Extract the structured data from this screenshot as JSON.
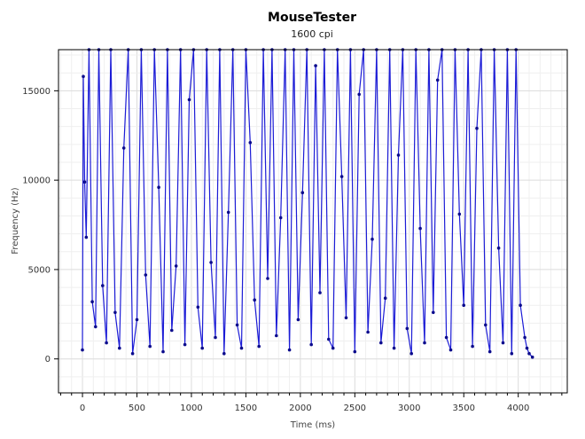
{
  "chart_data": {
    "type": "line",
    "title": "MouseTester",
    "subtitle": "1600 cpi",
    "xlabel": "Time (ms)",
    "ylabel": "Frequency (Hz)",
    "xlim": [
      -220,
      4450
    ],
    "ylim": [
      -1900,
      17300
    ],
    "x_ticks": [
      0,
      500,
      1000,
      1500,
      2000,
      2500,
      3000,
      3500,
      4000
    ],
    "y_ticks": [
      0,
      5000,
      10000,
      15000
    ],
    "x_minor_step": 100,
    "grid": true,
    "series": [
      {
        "color": "#1c1cd6",
        "marker_color": "#0b0b8c",
        "marker": "circle",
        "description_of_values": "sampled polling-rate readings, spiking between roughly 200 Hz and the top of the plot",
        "x": [
          0,
          8,
          20,
          35,
          60,
          90,
          120,
          150,
          185,
          220,
          260,
          300,
          340,
          380,
          420,
          460,
          500,
          540,
          580,
          620,
          660,
          700,
          740,
          780,
          820,
          860,
          900,
          940,
          980,
          1020,
          1060,
          1100,
          1140,
          1180,
          1220,
          1260,
          1300,
          1340,
          1380,
          1420,
          1460,
          1500,
          1540,
          1580,
          1620,
          1660,
          1700,
          1740,
          1780,
          1820,
          1860,
          1900,
          1940,
          1980,
          2020,
          2060,
          2100,
          2140,
          2180,
          2220,
          2260,
          2300,
          2340,
          2380,
          2420,
          2460,
          2500,
          2540,
          2580,
          2620,
          2660,
          2700,
          2740,
          2780,
          2820,
          2860,
          2900,
          2940,
          2980,
          3020,
          3060,
          3100,
          3140,
          3180,
          3220,
          3260,
          3300,
          3340,
          3380,
          3420,
          3460,
          3500,
          3540,
          3580,
          3620,
          3660,
          3700,
          3740,
          3780,
          3820,
          3860,
          3900,
          3940,
          3980,
          4020,
          4060,
          4080,
          4100,
          4130
        ],
        "y": [
          500,
          15800,
          9900,
          6800,
          17300,
          3200,
          1800,
          17300,
          4100,
          900,
          17300,
          2600,
          600,
          11800,
          17300,
          300,
          2200,
          17300,
          4700,
          700,
          17300,
          9600,
          400,
          17300,
          1600,
          5200,
          17300,
          800,
          14500,
          17300,
          2900,
          600,
          17300,
          5400,
          1200,
          17300,
          300,
          8200,
          17300,
          1900,
          600,
          17300,
          12100,
          3300,
          700,
          17300,
          4500,
          17300,
          1300,
          7900,
          17300,
          500,
          17300,
          2200,
          9300,
          17300,
          800,
          16400,
          3700,
          17300,
          1100,
          600,
          17300,
          10200,
          2300,
          17300,
          400,
          14800,
          17300,
          1500,
          6700,
          17300,
          900,
          3400,
          17300,
          600,
          11400,
          17300,
          1700,
          300,
          17300,
          7300,
          900,
          17300,
          2600,
          15600,
          17300,
          1200,
          500,
          17300,
          8100,
          3000,
          17300,
          700,
          12900,
          17300,
          1900,
          400,
          17300,
          6200,
          900,
          17300,
          300,
          17300,
          3000,
          1200,
          600,
          300,
          100
        ]
      }
    ]
  }
}
